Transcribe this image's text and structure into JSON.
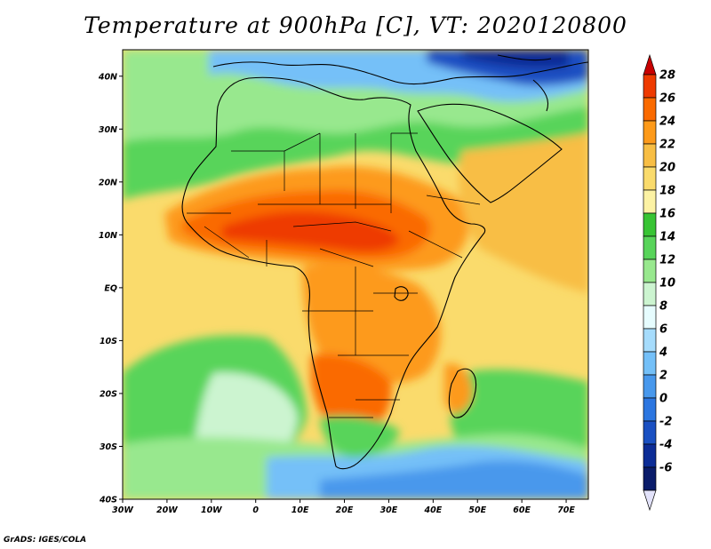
{
  "title": "Temperature at 900hPa [C], VT: 2020120800",
  "credit": "GrADS: IGES/COLA",
  "map": {
    "projection": "latlon",
    "lon_range": [
      -30,
      75
    ],
    "lat_range": [
      -40,
      45
    ],
    "x_ticks": [
      {
        "lon": -30,
        "label": "30W"
      },
      {
        "lon": -20,
        "label": "20W"
      },
      {
        "lon": -10,
        "label": "10W"
      },
      {
        "lon": 0,
        "label": "0"
      },
      {
        "lon": 10,
        "label": "10E"
      },
      {
        "lon": 20,
        "label": "20E"
      },
      {
        "lon": 30,
        "label": "30E"
      },
      {
        "lon": 40,
        "label": "40E"
      },
      {
        "lon": 50,
        "label": "50E"
      },
      {
        "lon": 60,
        "label": "60E"
      },
      {
        "lon": 70,
        "label": "70E"
      }
    ],
    "y_ticks": [
      {
        "lat": 40,
        "label": "40N"
      },
      {
        "lat": 30,
        "label": "30N"
      },
      {
        "lat": 20,
        "label": "20N"
      },
      {
        "lat": 10,
        "label": "10N"
      },
      {
        "lat": 0,
        "label": "EQ"
      },
      {
        "lat": -10,
        "label": "10S"
      },
      {
        "lat": -20,
        "label": "20S"
      },
      {
        "lat": -30,
        "label": "30S"
      },
      {
        "lat": -40,
        "label": "40S"
      }
    ]
  },
  "colorbar": {
    "levels": [
      "28",
      "26",
      "24",
      "22",
      "20",
      "18",
      "16",
      "14",
      "12",
      "10",
      "8",
      "6",
      "4",
      "2",
      "0",
      "-2",
      "-4",
      "-6"
    ],
    "colors": [
      "#c80000",
      "#ee3a00",
      "#fa6a00",
      "#fd9a1a",
      "#f8be44",
      "#fadb6c",
      "#fcf2a4",
      "#38c434",
      "#58d45a",
      "#98e88e",
      "#ccf4d0",
      "#e6fcfe",
      "#a6dcfc",
      "#74c0f8",
      "#4898ec",
      "#2c76e0",
      "#1a50c2",
      "#0c2c96",
      "#0a1c6a",
      "#e2e2fa"
    ]
  }
}
